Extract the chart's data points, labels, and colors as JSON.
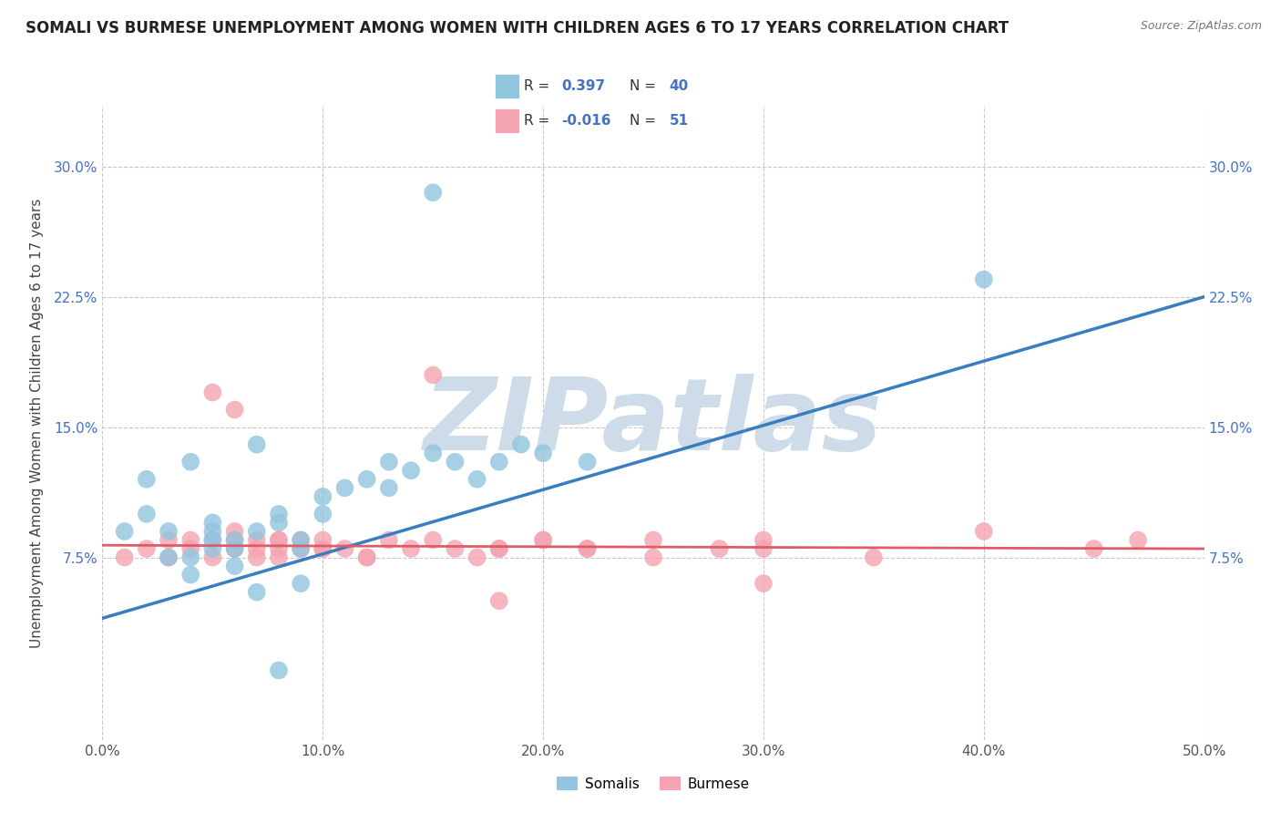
{
  "title": "SOMALI VS BURMESE UNEMPLOYMENT AMONG WOMEN WITH CHILDREN AGES 6 TO 17 YEARS CORRELATION CHART",
  "source": "Source: ZipAtlas.com",
  "ylabel": "Unemployment Among Women with Children Ages 6 to 17 years",
  "xlim": [
    0.0,
    0.5
  ],
  "ylim": [
    -0.03,
    0.335
  ],
  "xticks": [
    0.0,
    0.1,
    0.2,
    0.3,
    0.4,
    0.5
  ],
  "xtick_labels": [
    "0.0%",
    "10.0%",
    "20.0%",
    "30.0%",
    "40.0%",
    "50.0%"
  ],
  "yticks": [
    0.075,
    0.15,
    0.225,
    0.3
  ],
  "ytick_labels": [
    "7.5%",
    "15.0%",
    "22.5%",
    "30.0%"
  ],
  "somali_color": "#92c5de",
  "burmese_color": "#f4a4b0",
  "somali_line_color": "#3a7dbf",
  "burmese_line_color": "#e05a6a",
  "background_color": "#ffffff",
  "grid_color": "#c8c8c8",
  "watermark": "ZIPatlas",
  "watermark_color": "#cddce8",
  "legend_R_somali": "0.397",
  "legend_N_somali": "40",
  "legend_R_burmese": "-0.016",
  "legend_N_burmese": "51",
  "somali_x": [
    0.01,
    0.02,
    0.02,
    0.03,
    0.03,
    0.04,
    0.04,
    0.04,
    0.05,
    0.05,
    0.05,
    0.05,
    0.06,
    0.06,
    0.06,
    0.07,
    0.07,
    0.08,
    0.08,
    0.09,
    0.09,
    0.1,
    0.1,
    0.11,
    0.12,
    0.13,
    0.13,
    0.14,
    0.15,
    0.16,
    0.17,
    0.18,
    0.19,
    0.2,
    0.22,
    0.09,
    0.07,
    0.4,
    0.15,
    0.08
  ],
  "somali_y": [
    0.09,
    0.12,
    0.1,
    0.075,
    0.09,
    0.065,
    0.075,
    0.13,
    0.08,
    0.085,
    0.09,
    0.095,
    0.07,
    0.08,
    0.085,
    0.09,
    0.14,
    0.095,
    0.1,
    0.08,
    0.085,
    0.1,
    0.11,
    0.115,
    0.12,
    0.115,
    0.13,
    0.125,
    0.135,
    0.13,
    0.12,
    0.13,
    0.14,
    0.135,
    0.13,
    0.06,
    0.055,
    0.235,
    0.285,
    0.01
  ],
  "burmese_x": [
    0.01,
    0.02,
    0.03,
    0.03,
    0.04,
    0.04,
    0.05,
    0.05,
    0.06,
    0.06,
    0.06,
    0.07,
    0.07,
    0.07,
    0.08,
    0.08,
    0.08,
    0.09,
    0.09,
    0.1,
    0.1,
    0.11,
    0.12,
    0.13,
    0.14,
    0.15,
    0.16,
    0.17,
    0.18,
    0.2,
    0.22,
    0.25,
    0.28,
    0.3,
    0.22,
    0.25,
    0.3,
    0.35,
    0.4,
    0.45,
    0.47,
    0.05,
    0.06,
    0.08,
    0.1,
    0.12,
    0.15,
    0.18,
    0.2,
    0.3,
    0.18
  ],
  "burmese_y": [
    0.075,
    0.08,
    0.075,
    0.085,
    0.08,
    0.085,
    0.075,
    0.085,
    0.08,
    0.085,
    0.09,
    0.075,
    0.08,
    0.085,
    0.075,
    0.08,
    0.085,
    0.08,
    0.085,
    0.08,
    0.085,
    0.08,
    0.075,
    0.085,
    0.08,
    0.085,
    0.08,
    0.075,
    0.08,
    0.085,
    0.08,
    0.075,
    0.08,
    0.085,
    0.08,
    0.085,
    0.08,
    0.075,
    0.09,
    0.08,
    0.085,
    0.17,
    0.16,
    0.085,
    0.08,
    0.075,
    0.18,
    0.08,
    0.085,
    0.06,
    0.05
  ],
  "somali_line_x0": 0.0,
  "somali_line_y0": 0.04,
  "somali_line_x1": 0.5,
  "somali_line_y1": 0.225,
  "burmese_line_x0": 0.0,
  "burmese_line_y0": 0.082,
  "burmese_line_x1": 0.5,
  "burmese_line_y1": 0.08,
  "title_fontsize": 12,
  "axis_label_fontsize": 11,
  "tick_fontsize": 11,
  "ytick_color": "#4472c4",
  "xtick_color": "#555555"
}
